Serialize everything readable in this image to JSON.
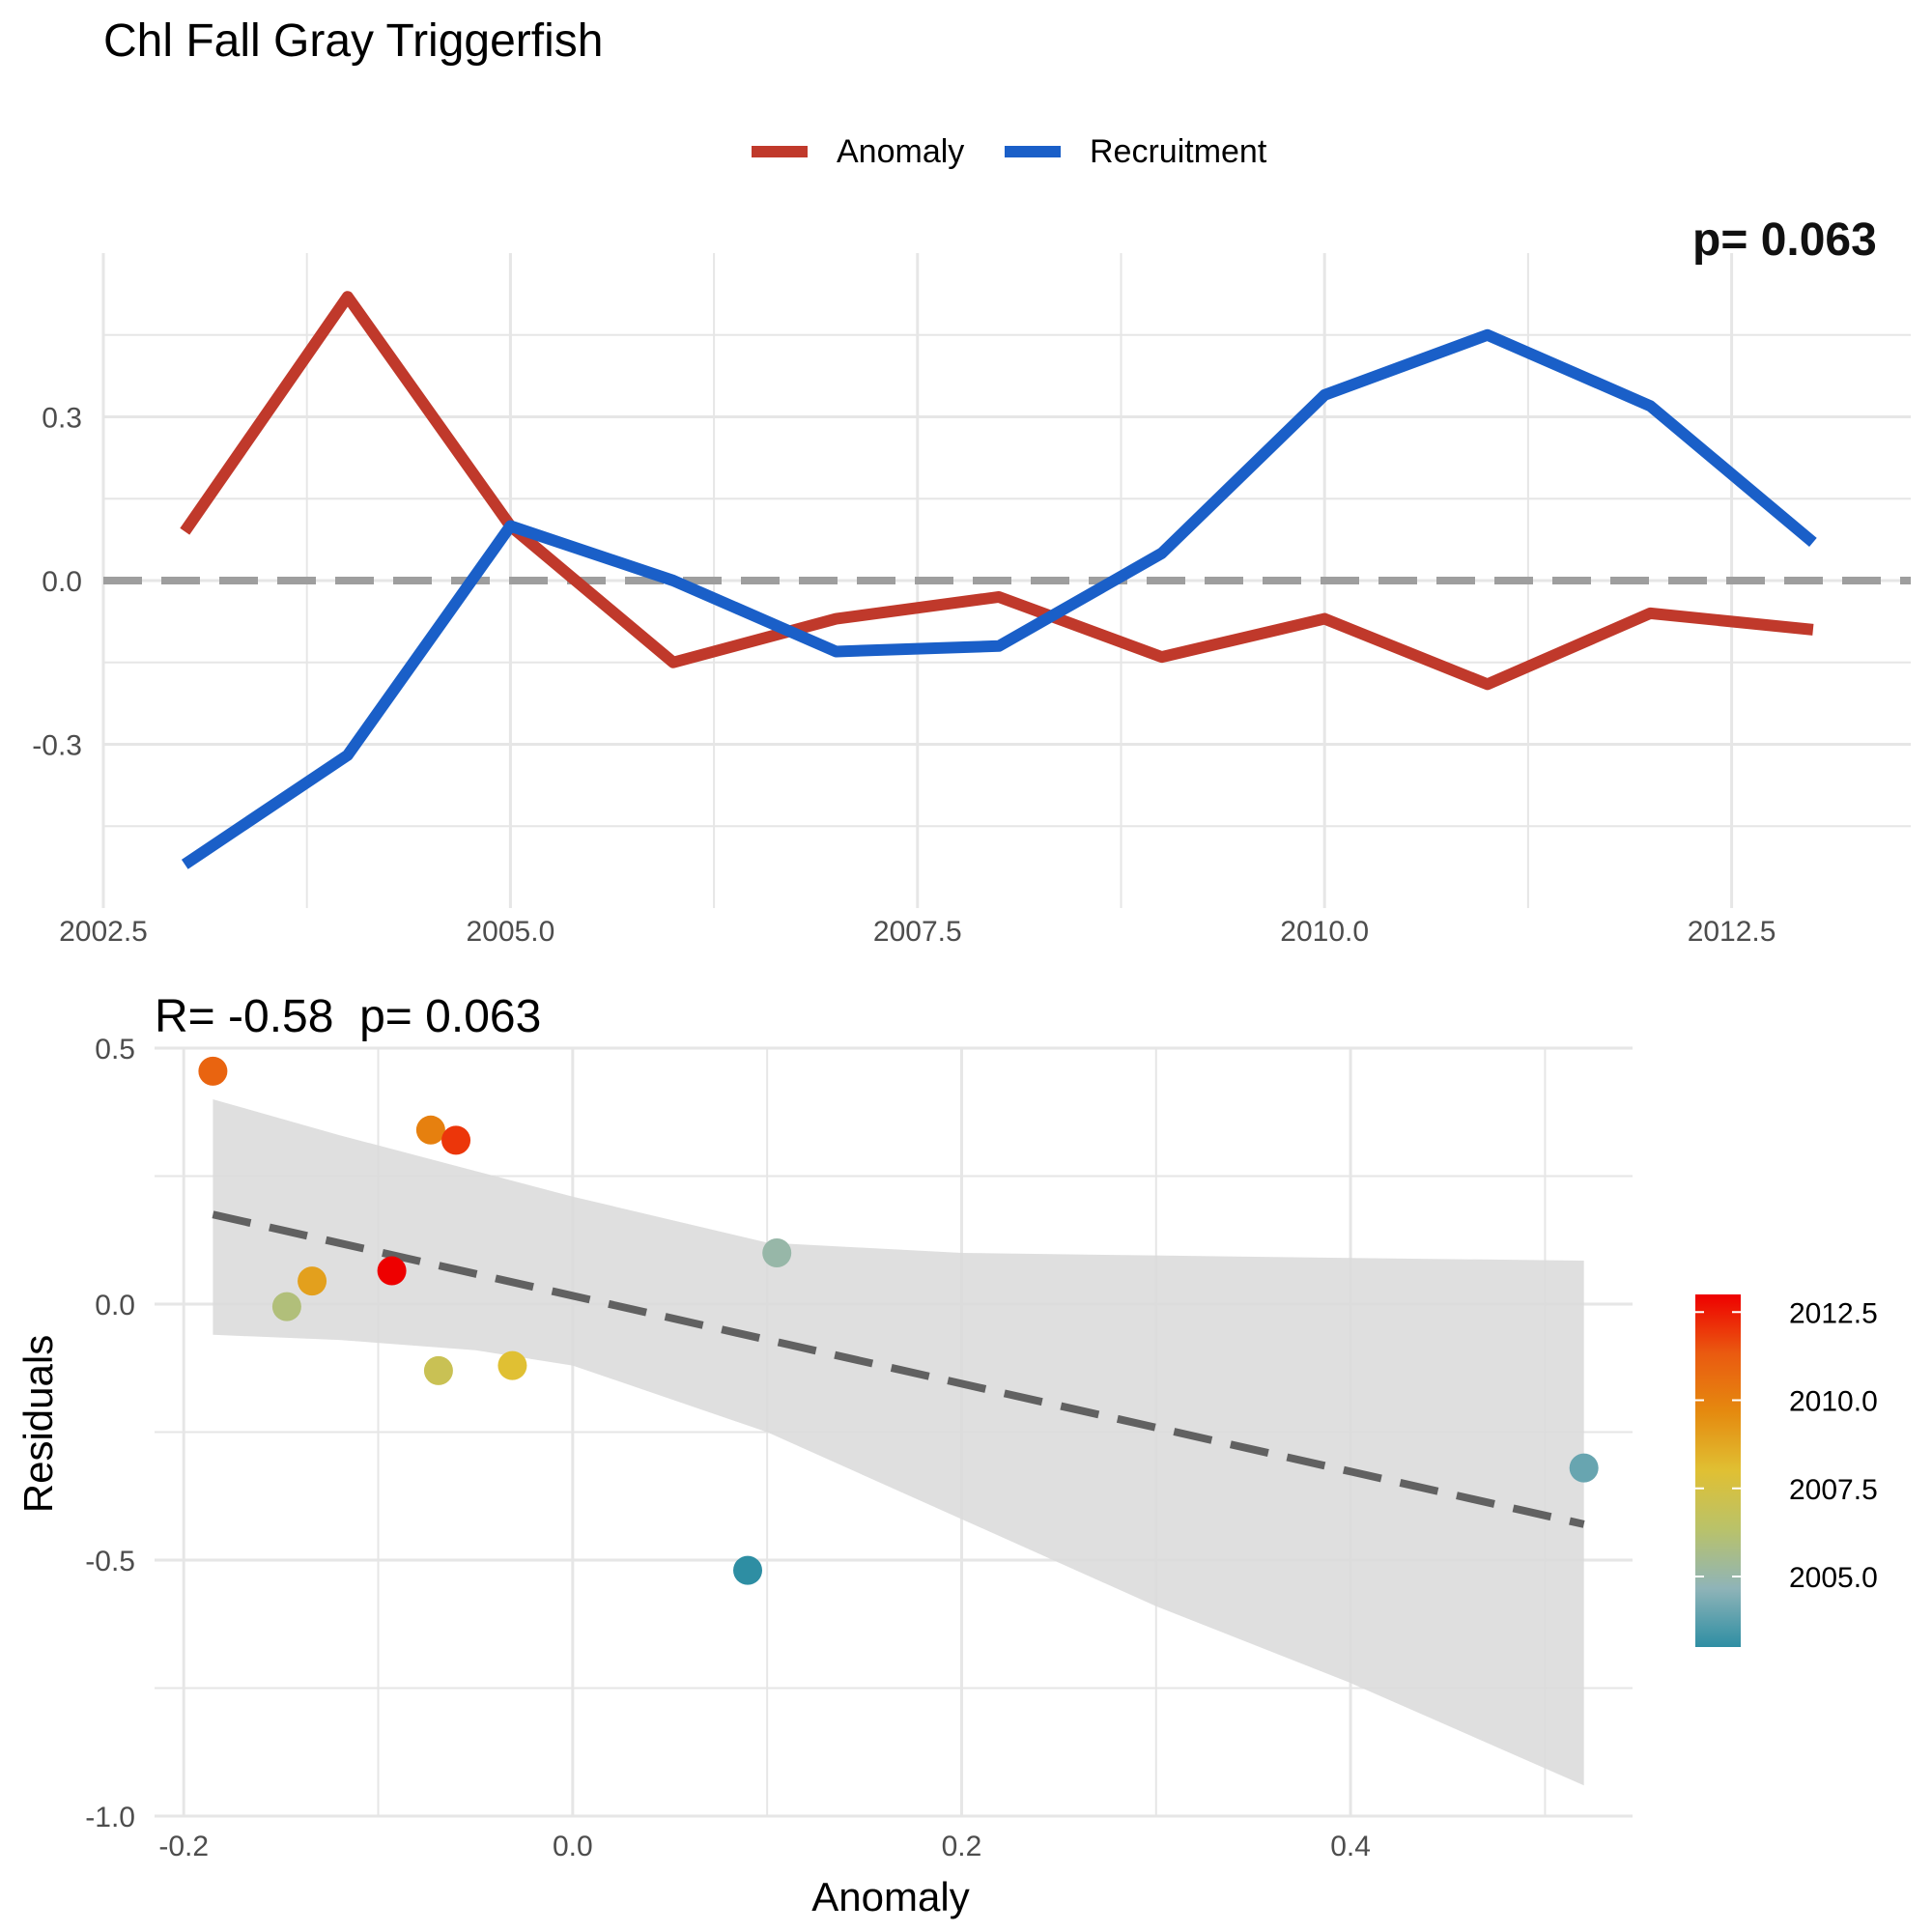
{
  "title": "Chl Fall Gray Triggerfish",
  "colors": {
    "anomaly": "#c0392b",
    "recruitment": "#1a5fc8",
    "zero_line": "#9e9e9e",
    "grid": "#e6e6e6",
    "ribbon": "#d9d9d9",
    "fit_line": "#616161",
    "colorbar": [
      "#2e8ea3",
      "#8fb4b8",
      "#b9c26a",
      "#e0c033",
      "#e58a0f",
      "#ea5a10",
      "#ee0000"
    ]
  },
  "chart_data": [
    {
      "type": "line",
      "legend": {
        "entries": [
          "Anomaly",
          "Recruitment"
        ],
        "placement": "top-center"
      },
      "corner_text": "p= 0.063",
      "x": [
        2003,
        2004,
        2005,
        2006,
        2007,
        2008,
        2009,
        2010,
        2011,
        2012,
        2013
      ],
      "series": [
        {
          "name": "Anomaly",
          "values": [
            0.09,
            0.52,
            0.1,
            -0.15,
            -0.07,
            -0.03,
            -0.14,
            -0.07,
            -0.19,
            -0.06,
            -0.09
          ]
        },
        {
          "name": "Recruitment",
          "values": [
            -0.52,
            -0.32,
            0.1,
            0.0,
            -0.13,
            -0.12,
            0.05,
            0.34,
            0.45,
            0.32,
            0.07
          ]
        }
      ],
      "reference_line_y": 0,
      "xlim": [
        2002.5,
        2013.6
      ],
      "ylim": [
        -0.6,
        0.6
      ],
      "xticks": [
        2002.5,
        2005.0,
        2007.5,
        2010.0,
        2012.5
      ],
      "xtick_labels": [
        "2002.5",
        "2005.0",
        "2007.5",
        "2010.0",
        "2012.5"
      ],
      "yticks": [
        -0.3,
        0.0,
        0.3
      ],
      "ytick_labels": [
        "-0.3",
        "0.0",
        "0.3"
      ],
      "grid": true
    },
    {
      "type": "scatter",
      "subtitle": "R= -0.58  p= 0.063",
      "xlabel": "Anomaly",
      "ylabel": "Residuals",
      "points": [
        {
          "x": 0.09,
          "y": -0.52,
          "year": 2003
        },
        {
          "x": 0.52,
          "y": -0.32,
          "year": 2004
        },
        {
          "x": 0.105,
          "y": 0.1,
          "year": 2005
        },
        {
          "x": -0.147,
          "y": -0.005,
          "year": 2006
        },
        {
          "x": -0.069,
          "y": -0.13,
          "year": 2007
        },
        {
          "x": -0.031,
          "y": -0.12,
          "year": 2008
        },
        {
          "x": -0.134,
          "y": 0.045,
          "year": 2009
        },
        {
          "x": -0.073,
          "y": 0.34,
          "year": 2010
        },
        {
          "x": -0.185,
          "y": 0.455,
          "year": 2011
        },
        {
          "x": -0.06,
          "y": 0.32,
          "year": 2012
        },
        {
          "x": -0.093,
          "y": 0.065,
          "year": 2013
        }
      ],
      "fit": {
        "x": [
          -0.185,
          0.52
        ],
        "y": [
          0.175,
          -0.43
        ]
      },
      "ribbon": {
        "x": [
          -0.185,
          -0.12,
          -0.05,
          0.0,
          0.1,
          0.2,
          0.3,
          0.4,
          0.52
        ],
        "upper": [
          0.4,
          0.33,
          0.26,
          0.21,
          0.12,
          0.1,
          0.095,
          0.09,
          0.085
        ],
        "lower": [
          -0.06,
          -0.07,
          -0.09,
          -0.12,
          -0.25,
          -0.42,
          -0.59,
          -0.74,
          -0.94
        ]
      },
      "xlim": [
        -0.215,
        0.545
      ],
      "ylim": [
        -1.0,
        0.5
      ],
      "xticks": [
        -0.2,
        0.0,
        0.2,
        0.4
      ],
      "xtick_labels": [
        "-0.2",
        "0.0",
        "0.2",
        "0.4"
      ],
      "yticks": [
        -1.0,
        -0.5,
        0.0,
        0.5
      ],
      "ytick_labels": [
        "-1.0",
        "-0.5",
        "0.0",
        "0.5"
      ],
      "grid": true,
      "colorbar": {
        "range": [
          2003,
          2013
        ],
        "ticks": [
          2005.0,
          2007.5,
          2010.0,
          2012.5
        ],
        "tick_labels": [
          "2005.0",
          "2007.5",
          "2010.0",
          "2012.5"
        ],
        "placement": "right"
      }
    }
  ]
}
